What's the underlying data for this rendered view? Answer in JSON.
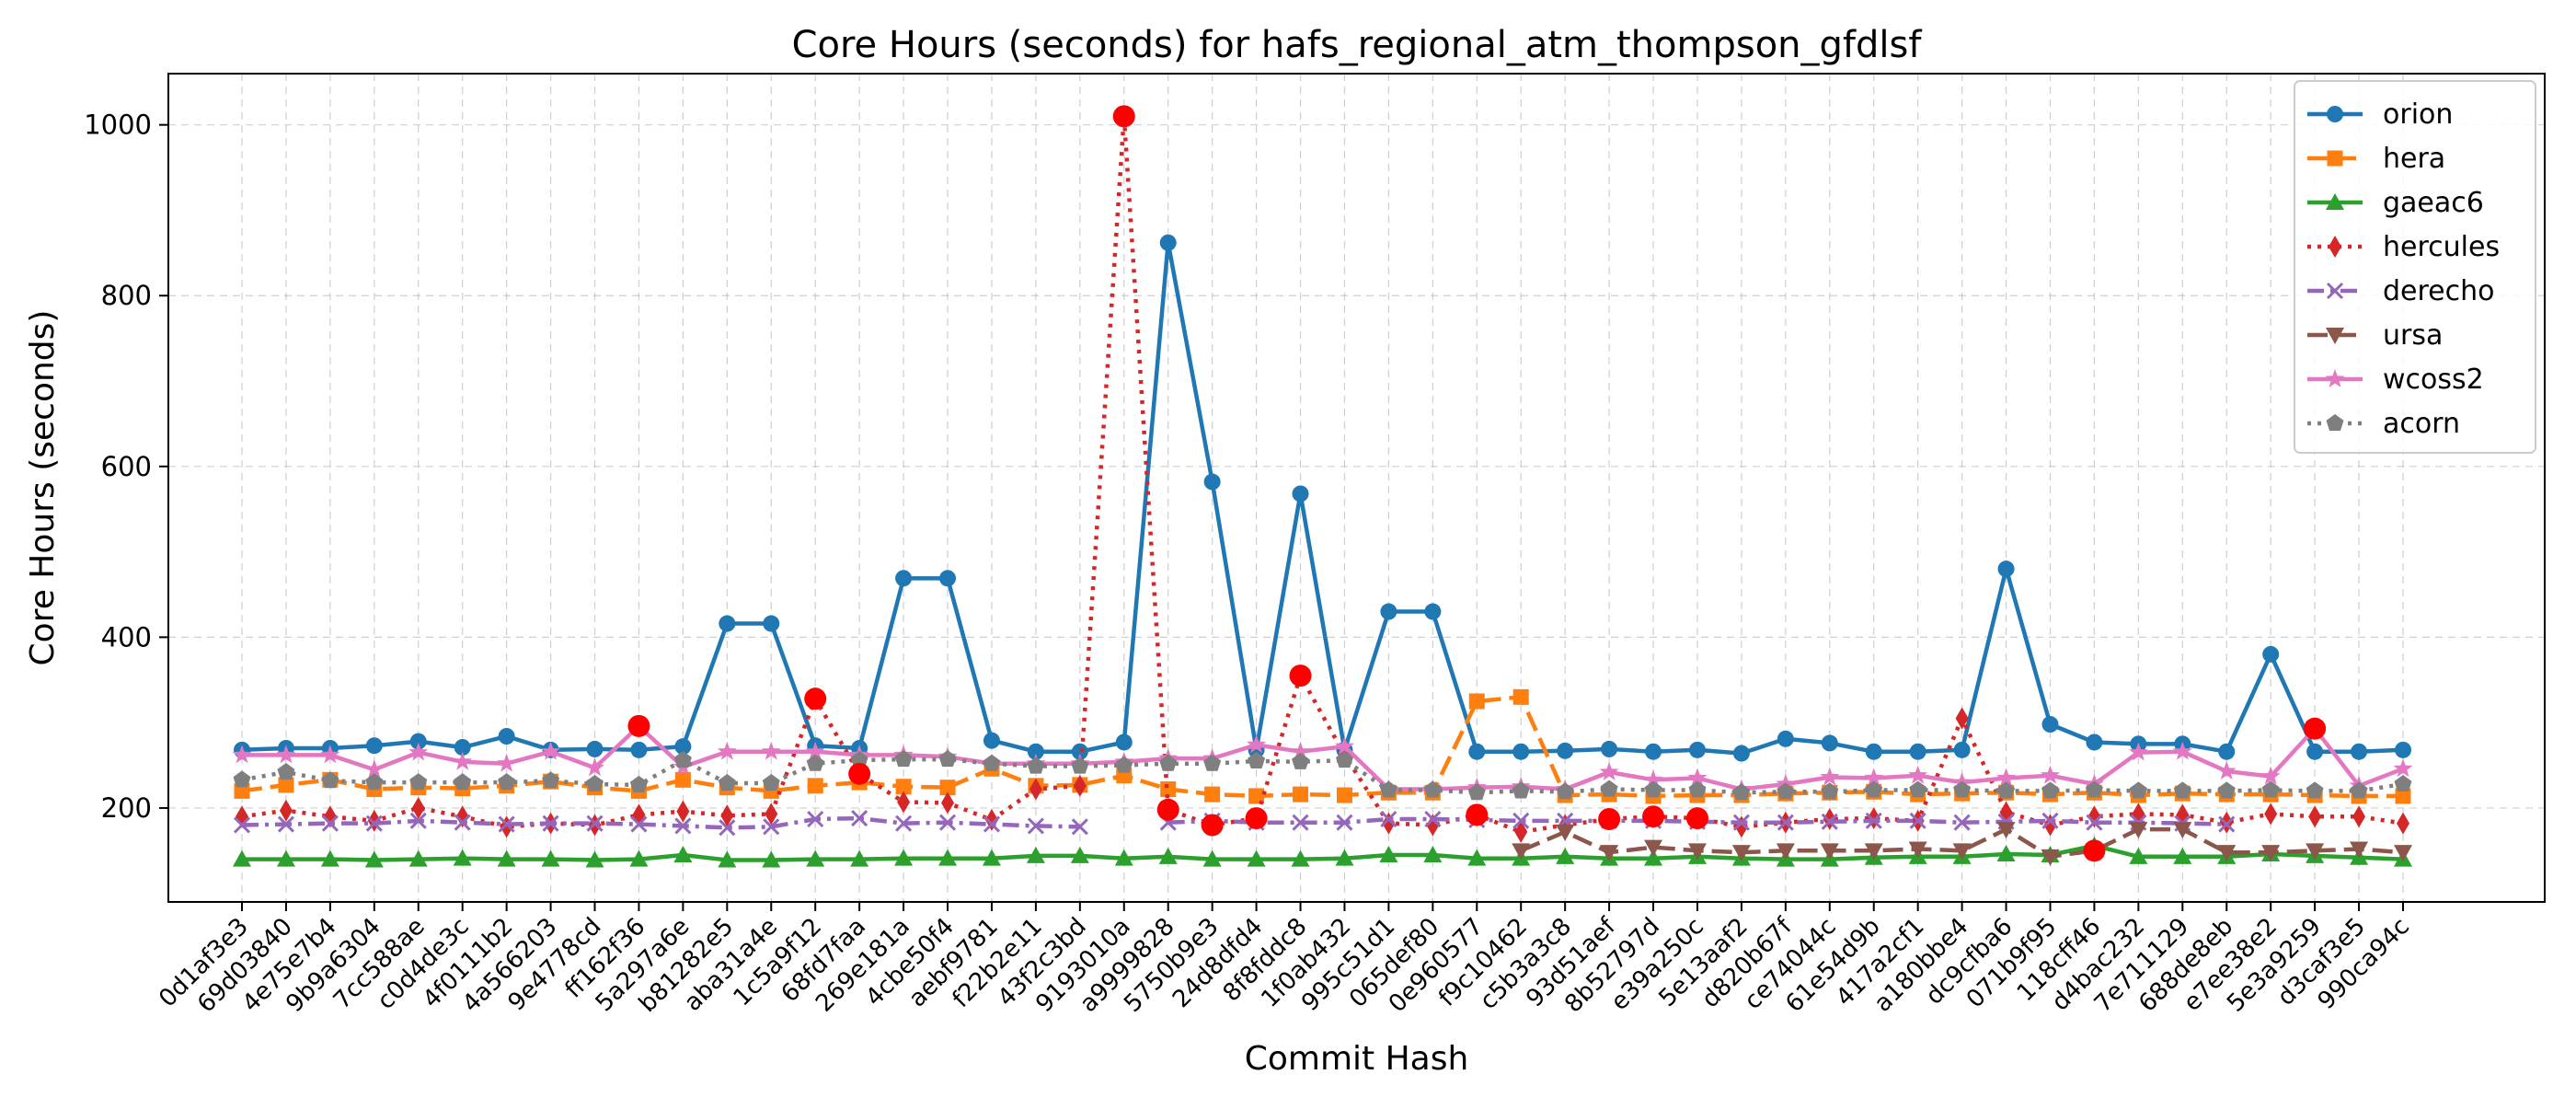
{
  "chart_data": {
    "type": "line",
    "title": "Core Hours (seconds) for hafs_regional_atm_thompson_gfdlsf",
    "xlabel": "Commit Hash",
    "ylabel": "Core Hours (seconds)",
    "ylim": [
      90,
      1060
    ],
    "yticks": [
      200,
      400,
      600,
      800,
      1000
    ],
    "grid": true,
    "legend_position": "top-right",
    "outlier_color": "#ff0000",
    "categories": [
      "0d1af3e3",
      "69d03840",
      "4e75e7b4",
      "9b9a6304",
      "7cc588ae",
      "c0d4de3c",
      "4f0111b2",
      "4a566203",
      "9e4778cd",
      "ff162f36",
      "5a297a6e",
      "b81282e5",
      "aba31a4e",
      "1c5a9f12",
      "68fd7faa",
      "269e181a",
      "4cbe50f4",
      "aebf9781",
      "f22b2e11",
      "43f2c3bd",
      "9193010a",
      "a9999828",
      "5750b9e3",
      "24d8dfd4",
      "8f8fddc8",
      "1f0ab432",
      "995c51d1",
      "065def80",
      "0e960577",
      "f9c10462",
      "c5b3a3c8",
      "93d51aef",
      "8b52797d",
      "e39a250c",
      "5e13aaf2",
      "d820b67f",
      "ce74044c",
      "61e54d9b",
      "417a2cf1",
      "a180bbe4",
      "dc9cfba6",
      "071b9f95",
      "118cff46",
      "d4bac232",
      "7e711129",
      "688de8eb",
      "e7ee38e2",
      "5e3a9259",
      "d3caf3e5",
      "990ca94c"
    ],
    "series": [
      {
        "name": "orion",
        "color": "#1f77b4",
        "marker": "circle",
        "dash": "solid",
        "values": [
          268,
          270,
          270,
          273,
          278,
          271,
          284,
          268,
          269,
          268,
          272,
          416,
          416,
          273,
          270,
          469,
          469,
          279,
          266,
          266,
          277,
          862,
          582,
          268,
          568,
          268,
          430,
          430,
          266,
          266,
          267,
          269,
          266,
          268,
          264,
          281,
          276,
          266,
          266,
          268,
          480,
          298,
          277,
          275,
          275,
          266,
          380,
          266,
          266,
          268
        ],
        "outliers": []
      },
      {
        "name": "hera",
        "color": "#ff7f0e",
        "marker": "square",
        "dash": "dashed",
        "values": [
          220,
          227,
          233,
          222,
          224,
          223,
          226,
          231,
          224,
          220,
          233,
          224,
          220,
          226,
          230,
          225,
          224,
          246,
          226,
          227,
          238,
          222,
          216,
          214,
          216,
          215,
          218,
          218,
          325,
          330,
          215,
          216,
          214,
          215,
          215,
          217,
          218,
          219,
          216,
          217,
          218,
          216,
          218,
          215,
          217,
          216,
          216,
          215,
          214,
          214
        ],
        "outliers": []
      },
      {
        "name": "gaeac6",
        "color": "#2ca02c",
        "marker": "triangle-up",
        "dash": "solid",
        "values": [
          140,
          140,
          140,
          139,
          140,
          141,
          140,
          140,
          139,
          140,
          145,
          139,
          139,
          140,
          140,
          141,
          141,
          141,
          144,
          144,
          141,
          143,
          140,
          140,
          140,
          141,
          145,
          145,
          141,
          141,
          143,
          141,
          141,
          143,
          141,
          140,
          140,
          142,
          143,
          143,
          146,
          145,
          156,
          143,
          143,
          143,
          146,
          144,
          142,
          140
        ],
        "outliers": []
      },
      {
        "name": "hercules",
        "color": "#d62728",
        "marker": "diamond",
        "dash": "dotted",
        "values": [
          190,
          197,
          190,
          185,
          200,
          190,
          178,
          182,
          180,
          192,
          196,
          191,
          193,
          328,
          240,
          207,
          206,
          186,
          222,
          226,
          1010,
          198,
          180,
          188,
          355,
          262,
          182,
          180,
          192,
          172,
          180,
          187,
          190,
          188,
          178,
          183,
          187,
          188,
          185,
          305,
          195,
          180,
          190,
          193,
          192,
          183,
          193,
          190,
          190,
          182
        ],
        "outliers": [
          13,
          14,
          20,
          21,
          22,
          23,
          24,
          28,
          31,
          32,
          33
        ]
      },
      {
        "name": "derecho",
        "color": "#9467bd",
        "marker": "x",
        "dash": "dashdot",
        "values": [
          180,
          181,
          182,
          182,
          185,
          183,
          181,
          182,
          182,
          181,
          179,
          177,
          178,
          187,
          188,
          182,
          183,
          181,
          179,
          178,
          null,
          183,
          185,
          183,
          183,
          183,
          187,
          187,
          186,
          185,
          185,
          185,
          185,
          184,
          183,
          183,
          184,
          185,
          185,
          183,
          184,
          185,
          183,
          183,
          182,
          181,
          null,
          null,
          null,
          null
        ],
        "outliers": []
      },
      {
        "name": "ursa",
        "color": "#8c564b",
        "marker": "triangle-down",
        "dash": "dashed",
        "values": [
          null,
          null,
          null,
          null,
          null,
          null,
          null,
          null,
          null,
          null,
          null,
          null,
          null,
          null,
          null,
          null,
          null,
          null,
          null,
          null,
          null,
          null,
          null,
          null,
          null,
          null,
          null,
          null,
          null,
          150,
          172,
          148,
          154,
          150,
          148,
          150,
          150,
          150,
          152,
          150,
          175,
          143,
          150,
          175,
          175,
          148,
          148,
          150,
          152,
          148
        ],
        "outliers": [
          42
        ]
      },
      {
        "name": "wcoss2",
        "color": "#e377c2",
        "marker": "star",
        "dash": "solid",
        "values": [
          262,
          262,
          262,
          245,
          265,
          254,
          252,
          266,
          247,
          296,
          248,
          266,
          266,
          266,
          262,
          262,
          260,
          252,
          252,
          252,
          254,
          258,
          258,
          274,
          266,
          272,
          222,
          222,
          224,
          225,
          222,
          242,
          233,
          235,
          222,
          228,
          236,
          235,
          238,
          230,
          235,
          238,
          228,
          265,
          266,
          243,
          237,
          293,
          226,
          246
        ],
        "outliers": [
          9,
          47
        ]
      },
      {
        "name": "acorn",
        "color": "#7f7f7f",
        "marker": "pentagon",
        "dash": "dotted",
        "values": [
          233,
          242,
          232,
          230,
          230,
          230,
          230,
          232,
          228,
          227,
          256,
          229,
          229,
          252,
          256,
          257,
          257,
          252,
          249,
          249,
          250,
          252,
          252,
          255,
          254,
          256,
          221,
          221,
          218,
          220,
          219,
          222,
          221,
          221,
          218,
          219,
          219,
          221,
          221,
          221,
          220,
          220,
          221,
          220,
          220,
          220,
          221,
          220,
          220,
          228
        ],
        "outliers": []
      }
    ]
  }
}
